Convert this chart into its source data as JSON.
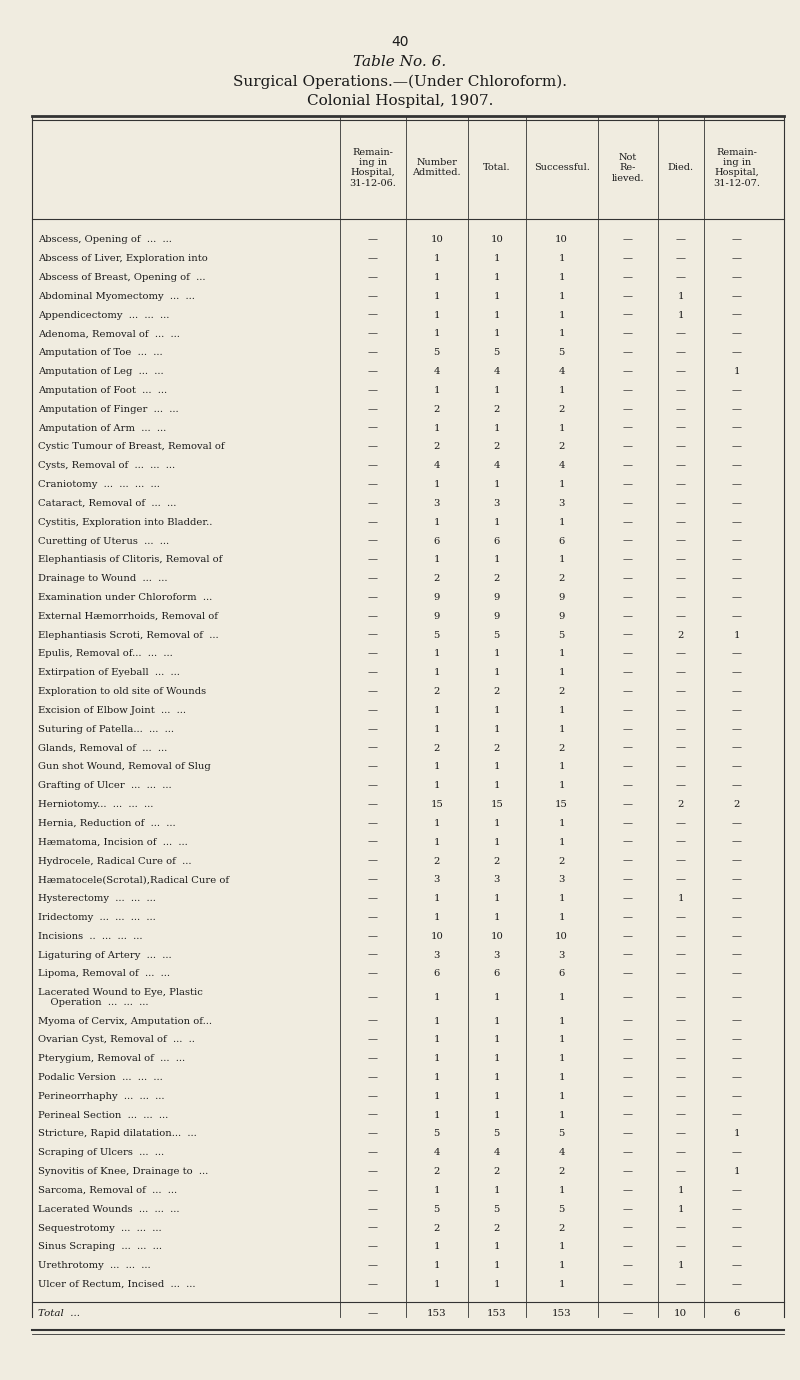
{
  "page_number": "40",
  "title_line1": "Table No. 6.",
  "title_line2": "Surgical Operations.—(Under Chloroform).",
  "title_line3": "Colonial Hospital, 1907.",
  "col_headers": [
    "Remain-\ning in\nHospital,\n31-12-06.",
    "Number\nAdmitted.",
    "Total.",
    "Successful.",
    "Not\nRe-\nlieved.",
    "Died.",
    "Remain-\ning in\nHospital,\n31-12-07."
  ],
  "rows": [
    [
      "Abscess, Opening of  ...  ...",
      "—",
      "10",
      "10",
      "10",
      "—",
      "—",
      "—"
    ],
    [
      "Abscess of Liver, Exploration into",
      "—",
      "1",
      "1",
      "1",
      "—",
      "—",
      "—"
    ],
    [
      "Abscess of Breast, Opening of  ...",
      "—",
      "1",
      "1",
      "1",
      "—",
      "—",
      "—"
    ],
    [
      "Abdominal Myomectomy  ...  ...",
      "—",
      "1",
      "1",
      "1",
      "—",
      "1",
      "—"
    ],
    [
      "Appendicectomy  ...  ...  ...",
      "—",
      "1",
      "1",
      "1",
      "—",
      "1",
      "—"
    ],
    [
      "Adenoma, Removal of  ...  ...",
      "—",
      "1",
      "1",
      "1",
      "—",
      "—",
      "—"
    ],
    [
      "Amputation of Toe  ...  ...",
      "—",
      "5",
      "5",
      "5",
      "—",
      "—",
      "—"
    ],
    [
      "Amputation of Leg  ...  ...",
      "—",
      "4",
      "4",
      "4",
      "—",
      "—",
      "1"
    ],
    [
      "Amputation of Foot  ...  ...",
      "—",
      "1",
      "1",
      "1",
      "—",
      "—",
      "—"
    ],
    [
      "Amputation of Finger  ...  ...",
      "—",
      "2",
      "2",
      "2",
      "—",
      "—",
      "—"
    ],
    [
      "Amputation of Arm  ...  ...",
      "—",
      "1",
      "1",
      "1",
      "—",
      "—",
      "—"
    ],
    [
      "Cystic Tumour of Breast, Removal of",
      "—",
      "2",
      "2",
      "2",
      "—",
      "—",
      "—"
    ],
    [
      "Cysts, Removal of  ...  ...  ...",
      "—",
      "4",
      "4",
      "4",
      "—",
      "—",
      "—"
    ],
    [
      "Craniotomy  ...  ...  ...  ...",
      "—",
      "1",
      "1",
      "1",
      "—",
      "—",
      "—"
    ],
    [
      "Cataract, Removal of  ...  ...",
      "—",
      "3",
      "3",
      "3",
      "—",
      "—",
      "—"
    ],
    [
      "Cystitis, Exploration into Bladder..",
      "—",
      "1",
      "1",
      "1",
      "—",
      "—",
      "—"
    ],
    [
      "Curetting of Uterus  ...  ...",
      "—",
      "6",
      "6",
      "6",
      "—",
      "—",
      "—"
    ],
    [
      "Elephantiasis of Clitoris, Removal of",
      "—",
      "1",
      "1",
      "1",
      "—",
      "—",
      "—"
    ],
    [
      "Drainage to Wound  ...  ...",
      "—",
      "2",
      "2",
      "2",
      "—",
      "—",
      "—"
    ],
    [
      "Examination under Chloroform  ...",
      "—",
      "9",
      "9",
      "9",
      "—",
      "—",
      "—"
    ],
    [
      "External Hæmorrhoids, Removal of",
      "—",
      "9",
      "9",
      "9",
      "—",
      "—",
      "—"
    ],
    [
      "Elephantiasis Scroti, Removal of  ...",
      "—",
      "5",
      "5",
      "5",
      "—",
      "2",
      "1"
    ],
    [
      "Epulis, Removal of...  ...  ...",
      "—",
      "1",
      "1",
      "1",
      "—",
      "—",
      "—"
    ],
    [
      "Extirpation of Eyeball  ...  ...",
      "—",
      "1",
      "1",
      "1",
      "—",
      "—",
      "—"
    ],
    [
      "Exploration to old site of Wounds",
      "—",
      "2",
      "2",
      "2",
      "—",
      "—",
      "—"
    ],
    [
      "Excision of Elbow Joint  ...  ...",
      "—",
      "1",
      "1",
      "1",
      "—",
      "—",
      "—"
    ],
    [
      "Suturing of Patella...  ...  ...",
      "—",
      "1",
      "1",
      "1",
      "—",
      "—",
      "—"
    ],
    [
      "Glands, Removal of  ...  ...",
      "—",
      "2",
      "2",
      "2",
      "—",
      "—",
      "—"
    ],
    [
      "Gun shot Wound, Removal of Slug",
      "—",
      "1",
      "1",
      "1",
      "—",
      "—",
      "—"
    ],
    [
      "Grafting of Ulcer  ...  ...  ...",
      "—",
      "1",
      "1",
      "1",
      "—",
      "—",
      "—"
    ],
    [
      "Herniotomy...  ...  ...  ...",
      "—",
      "15",
      "15",
      "15",
      "—",
      "2",
      "2"
    ],
    [
      "Hernia, Reduction of  ...  ...",
      "—",
      "1",
      "1",
      "1",
      "—",
      "—",
      "—"
    ],
    [
      "Hæmatoma, Incision of  ...  ...",
      "—",
      "1",
      "1",
      "1",
      "—",
      "—",
      "—"
    ],
    [
      "Hydrocele, Radical Cure of  ...",
      "—",
      "2",
      "2",
      "2",
      "—",
      "—",
      "—"
    ],
    [
      "Hæmatocele(Scrotal),Radical Cure of",
      "—",
      "3",
      "3",
      "3",
      "—",
      "—",
      "—"
    ],
    [
      "Hysterectomy  ...  ...  ...",
      "—",
      "1",
      "1",
      "1",
      "—",
      "1",
      "—"
    ],
    [
      "Iridectomy  ...  ...  ...  ...",
      "—",
      "1",
      "1",
      "1",
      "—",
      "—",
      "—"
    ],
    [
      "Incisions  ..  ...  ...  ...",
      "—",
      "10",
      "10",
      "10",
      "—",
      "—",
      "—"
    ],
    [
      "Ligaturing of Artery  ...  ...",
      "—",
      "3",
      "3",
      "3",
      "—",
      "—",
      "—"
    ],
    [
      "Lipoma, Removal of  ...  ...",
      "—",
      "6",
      "6",
      "6",
      "—",
      "—",
      "—"
    ],
    [
      "Lacerated Wound to Eye, Plastic\n    Operation  ...  ...  ...",
      "—",
      "1",
      "1",
      "1",
      "—",
      "—",
      "—"
    ],
    [
      "Myoma of Cervix, Amputation of...",
      "—",
      "1",
      "1",
      "1",
      "—",
      "—",
      "—"
    ],
    [
      "Ovarian Cyst, Removal of  ...  ..",
      "—",
      "1",
      "1",
      "1",
      "—",
      "—",
      "—"
    ],
    [
      "Pterygium, Removal of  ...  ...",
      "—",
      "1",
      "1",
      "1",
      "—",
      "—",
      "—"
    ],
    [
      "Podalic Version  ...  ...  ...",
      "—",
      "1",
      "1",
      "1",
      "—",
      "—",
      "—"
    ],
    [
      "Perineorrhaphy  ...  ...  ...",
      "—",
      "1",
      "1",
      "1",
      "—",
      "—",
      "—"
    ],
    [
      "Perineal Section  ...  ...  ...",
      "—",
      "1",
      "1",
      "1",
      "—",
      "—",
      "—"
    ],
    [
      "Stricture, Rapid dilatation...  ...",
      "—",
      "5",
      "5",
      "5",
      "—",
      "—",
      "1"
    ],
    [
      "Scraping of Ulcers  ...  ...",
      "—",
      "4",
      "4",
      "4",
      "—",
      "—",
      "—"
    ],
    [
      "Synovitis of Knee, Drainage to  ...",
      "—",
      "2",
      "2",
      "2",
      "—",
      "—",
      "1"
    ],
    [
      "Sarcoma, Removal of  ...  ...",
      "—",
      "1",
      "1",
      "1",
      "—",
      "1",
      "—"
    ],
    [
      "Lacerated Wounds  ...  ...  ...",
      "—",
      "5",
      "5",
      "5",
      "—",
      "1",
      "—"
    ],
    [
      "Sequestrotomy  ...  ...  ...",
      "—",
      "2",
      "2",
      "2",
      "—",
      "—",
      "—"
    ],
    [
      "Sinus Scraping  ...  ...  ...",
      "—",
      "1",
      "1",
      "1",
      "—",
      "—",
      "—"
    ],
    [
      "Urethrotomy  ...  ...  ...",
      "—",
      "1",
      "1",
      "1",
      "—",
      "1",
      "—"
    ],
    [
      "Ulcer of Rectum, Incised  ...  ...",
      "—",
      "1",
      "1",
      "1",
      "—",
      "—",
      "—"
    ]
  ],
  "total_row": [
    "Total  ...",
    "—",
    "153",
    "153",
    "153",
    "—",
    "10",
    "6"
  ],
  "bg_color": "#f0ece0",
  "text_color": "#1a1a1a"
}
